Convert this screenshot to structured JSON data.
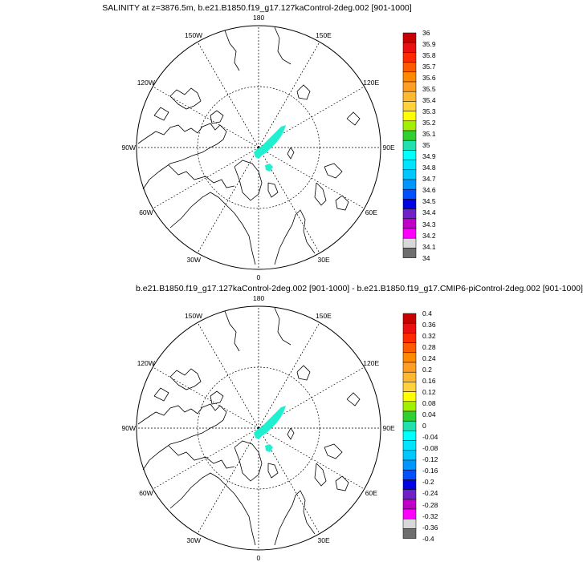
{
  "panels": [
    {
      "title": "SALINITY at z=3876.5m, b.e21.B1850.f19_g17.127kaControl-2deg.002 [901-1000]",
      "colorbar": {
        "labels": [
          "36",
          "35.9",
          "35.8",
          "35.7",
          "35.6",
          "35.5",
          "35.4",
          "35.3",
          "35.2",
          "35.1",
          "35",
          "34.9",
          "34.8",
          "34.7",
          "34.6",
          "34.5",
          "34.4",
          "34.3",
          "34.2",
          "34.1",
          "34"
        ],
        "colors": [
          "#c80000",
          "#e81010",
          "#ff2a00",
          "#ff5a00",
          "#ff8a00",
          "#ff9e22",
          "#ffb830",
          "#ffd23c",
          "#ffff00",
          "#a0f000",
          "#30d030",
          "#20e0b0",
          "#00ffff",
          "#00e4ff",
          "#00c8ff",
          "#0096ff",
          "#0050ff",
          "#0000e0",
          "#7020c8",
          "#c000c8",
          "#ff00ff",
          "#d8d8d8",
          "#6e6e6e"
        ]
      }
    },
    {
      "title": "b.e21.B1850.f19_g17.127kaControl-2deg.002 [901-1000] - b.e21.B1850.f19_g17.CMIP6-piControl-2deg.002 [901-1000]",
      "colorbar": {
        "labels": [
          "0.4",
          "0.36",
          "0.32",
          "0.28",
          "0.24",
          "0.2",
          "0.16",
          "0.12",
          "0.08",
          "0.04",
          "0",
          "-0.04",
          "-0.08",
          "-0.12",
          "-0.16",
          "-0.2",
          "-0.24",
          "-0.28",
          "-0.32",
          "-0.36",
          "-0.4"
        ],
        "colors": [
          "#c80000",
          "#e81010",
          "#ff2a00",
          "#ff5a00",
          "#ff8a00",
          "#ff9e22",
          "#ffb830",
          "#ffd23c",
          "#ffff00",
          "#a0f000",
          "#30d030",
          "#20e0b0",
          "#00ffff",
          "#00e4ff",
          "#00c8ff",
          "#0096ff",
          "#0050ff",
          "#0000e0",
          "#7020c8",
          "#c000c8",
          "#ff00ff",
          "#d8d8d8",
          "#6e6e6e"
        ]
      }
    }
  ],
  "map_labels": [
    "180",
    "150E",
    "120E",
    "90E",
    "60E",
    "30E",
    "0",
    "30W",
    "60W",
    "90W",
    "120W",
    "150W"
  ],
  "colors": {
    "field": "#20f0d0",
    "coast": "#000000",
    "grid": "#000000"
  }
}
